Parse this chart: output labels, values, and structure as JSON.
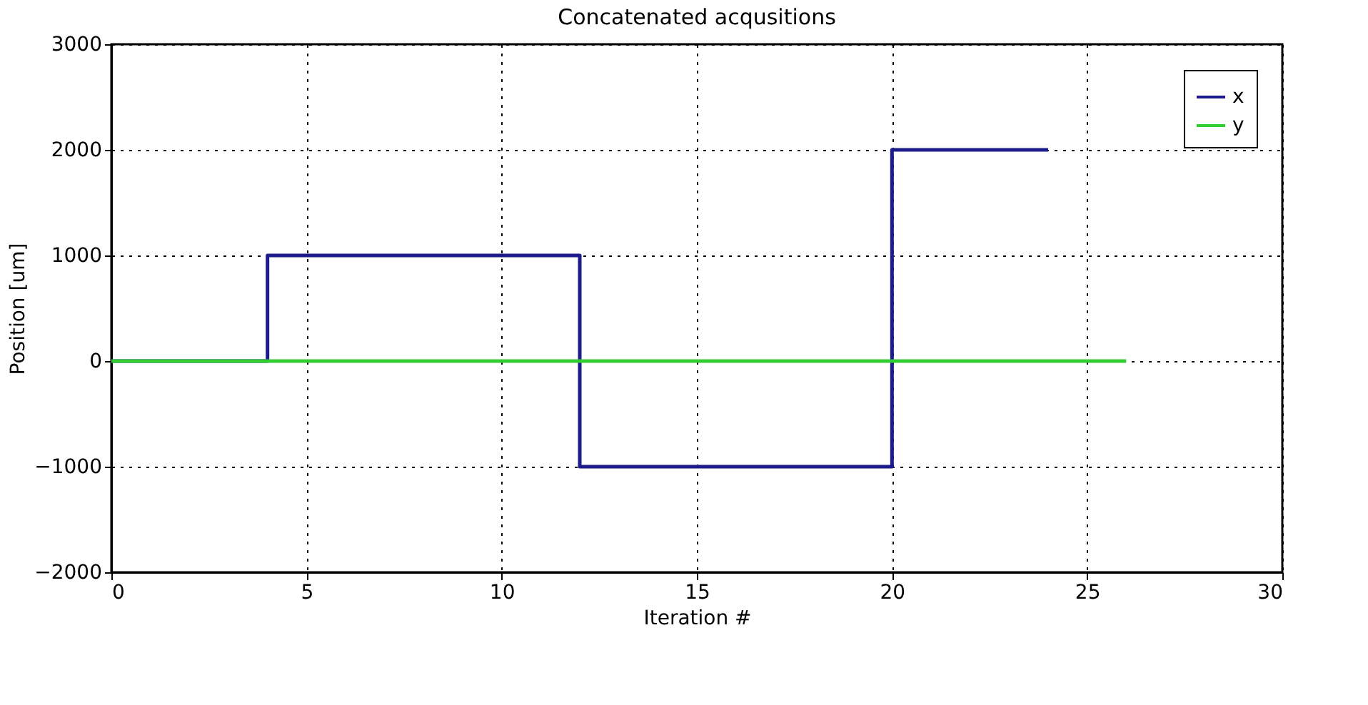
{
  "chart_data": {
    "type": "step",
    "title": "Concatenated acqusitions",
    "xlabel": "Iteration #",
    "ylabel": "Position [um]",
    "xlim": [
      0,
      30
    ],
    "xticks": [
      0,
      5,
      10,
      15,
      20,
      25,
      30
    ],
    "ylim": [
      -2000,
      3000
    ],
    "yticks": [
      -2000,
      -1000,
      0,
      1000,
      2000,
      3000
    ],
    "grid": true,
    "line_style": "solid",
    "marker": "none",
    "legend": "top right",
    "series": [
      {
        "name": "x",
        "color": "#1c1c8c",
        "x": [
          0,
          4,
          12,
          20,
          24
        ],
        "values": [
          0,
          1000,
          -1000,
          2000,
          2000
        ]
      },
      {
        "name": "y",
        "color": "#33cc33",
        "x": [
          0,
          26
        ],
        "values": [
          0,
          0
        ]
      }
    ]
  }
}
